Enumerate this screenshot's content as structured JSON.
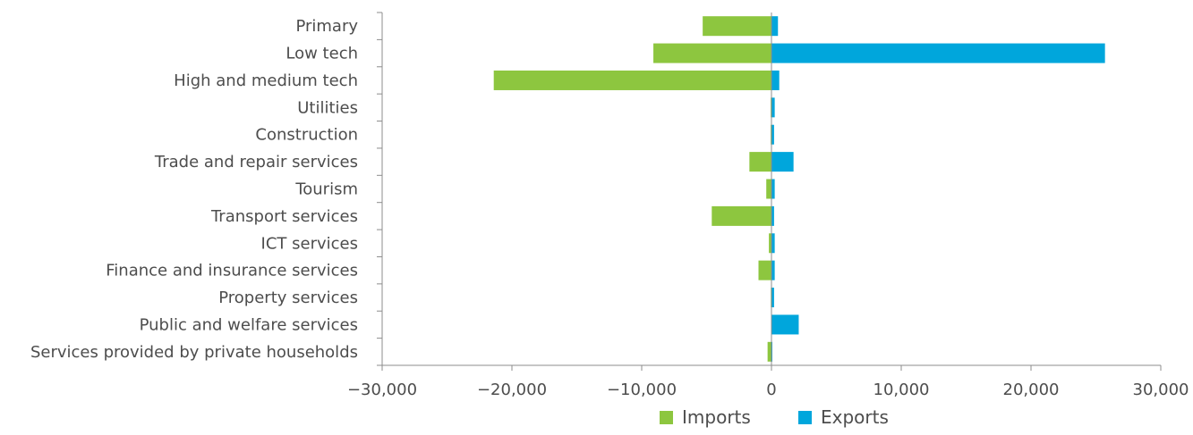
{
  "chart_data": {
    "type": "bar",
    "orientation": "horizontal",
    "categories": [
      "Primary",
      "Low tech",
      "High and medium tech",
      "Utilities",
      "Construction",
      "Trade and repair services",
      "Tourism",
      "Transport services",
      "ICT services",
      "Finance and insurance services",
      "Property services",
      "Public and welfare services",
      "Services provided by private households"
    ],
    "series": [
      {
        "name": "Imports",
        "color": "#8dc63f",
        "values": [
          -5300,
          -9100,
          -21400,
          -60,
          -60,
          -1700,
          -400,
          -4600,
          -200,
          -1000,
          -50,
          0,
          -300
        ]
      },
      {
        "name": "Exports",
        "color": "#00a6dc",
        "values": [
          500,
          25700,
          600,
          250,
          200,
          1700,
          250,
          200,
          250,
          250,
          200,
          2100,
          50
        ]
      }
    ],
    "xlim": [
      -30000,
      30000
    ],
    "x_ticks": [
      -30000,
      -20000,
      -10000,
      0,
      10000,
      20000,
      30000
    ],
    "x_tick_labels": [
      "−30,000",
      "−20,000",
      "−10,000",
      "0",
      "10,000",
      "20,000",
      "30,000"
    ],
    "legend": {
      "position": "bottom",
      "entries": [
        "Imports",
        "Exports"
      ]
    },
    "grid": false,
    "axis_color": "#8c8c8c"
  }
}
